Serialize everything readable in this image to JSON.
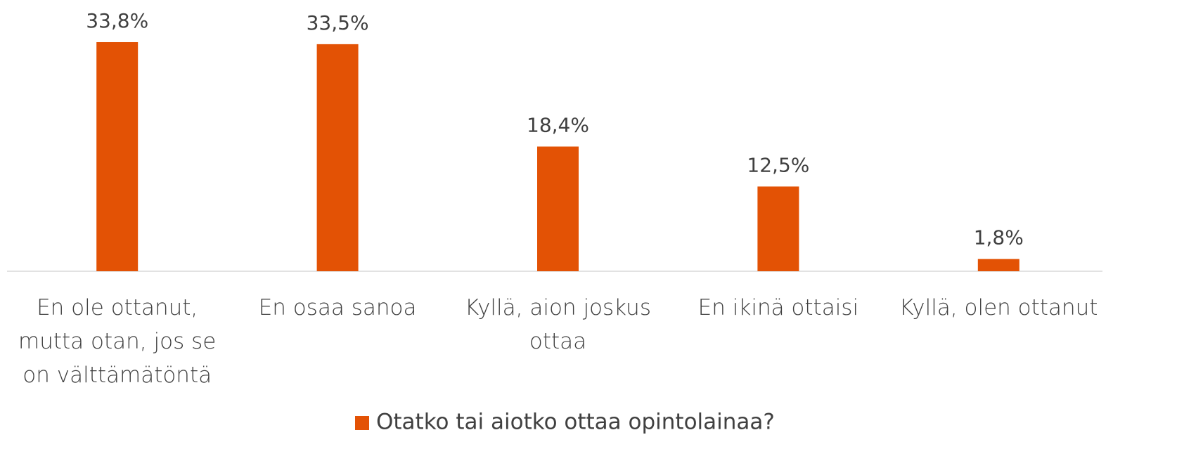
{
  "chart_data": {
    "type": "bar",
    "categories": [
      "En ole ottanut, mutta otan, jos se on välttämätöntä",
      "En osaa sanoa",
      "Kyllä, aion joskus ottaa",
      "En ikinä ottaisi",
      "Kyllä, olen ottanut"
    ],
    "series": [
      {
        "name": "Otatko tai aiotko ottaa opintolainaa?",
        "color": "#e35205",
        "values": [
          33.8,
          33.5,
          18.4,
          12.5,
          1.8
        ],
        "value_labels": [
          "33,8%",
          "33,5%",
          "18,4%",
          "12,5%",
          "1,8%"
        ]
      }
    ],
    "ylim": [
      0,
      35
    ],
    "legend": "bottom"
  }
}
